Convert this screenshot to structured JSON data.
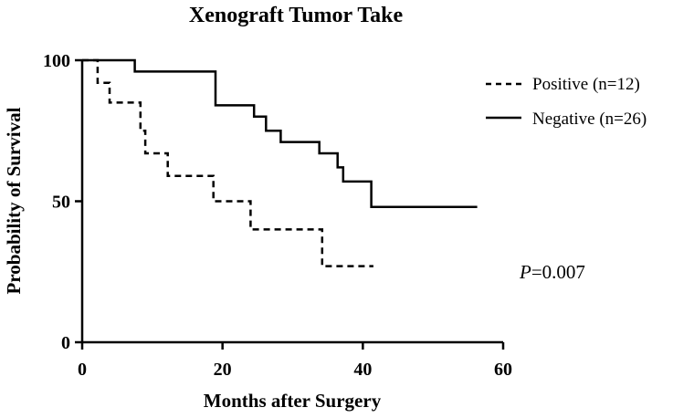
{
  "chart_data": {
    "type": "line",
    "subtype": "kaplan-meier-step",
    "title": "Xenograft Tumor Take",
    "xlabel": "Months after Surgery",
    "ylabel": "Probability of Survival",
    "xlim": [
      0,
      60
    ],
    "ylim": [
      0,
      100
    ],
    "xticks": [
      0,
      20,
      40,
      60
    ],
    "yticks": [
      0,
      50,
      100
    ],
    "grid": false,
    "legend_position": "top-right",
    "series": [
      {
        "name": "Positive (n=12)",
        "style": "dashed",
        "color": "#000000",
        "x": [
          0,
          2.2,
          2.2,
          3.9,
          3.9,
          8.3,
          8.3,
          9.0,
          9.0,
          12.2,
          12.2,
          18.7,
          18.7,
          24.0,
          24.0,
          34.2,
          34.2,
          41.5
        ],
        "y": [
          100,
          100,
          92,
          92,
          85,
          85,
          75,
          75,
          67,
          67,
          59,
          59,
          50,
          50,
          40,
          40,
          27,
          27
        ]
      },
      {
        "name": "Negative (n=26)",
        "style": "solid",
        "color": "#000000",
        "x": [
          0,
          7.5,
          7.5,
          19.0,
          19.0,
          24.5,
          24.5,
          26.2,
          26.2,
          28.3,
          28.3,
          33.8,
          33.8,
          36.4,
          36.4,
          37.2,
          37.2,
          41.2,
          41.2,
          56.3
        ],
        "y": [
          100,
          100,
          96,
          96,
          84,
          84,
          80,
          80,
          75,
          75,
          71,
          71,
          67,
          67,
          62,
          62,
          57,
          57,
          48,
          48
        ]
      }
    ],
    "annotations": [
      {
        "italic_part": "P",
        "rest": "=0.007"
      }
    ]
  }
}
